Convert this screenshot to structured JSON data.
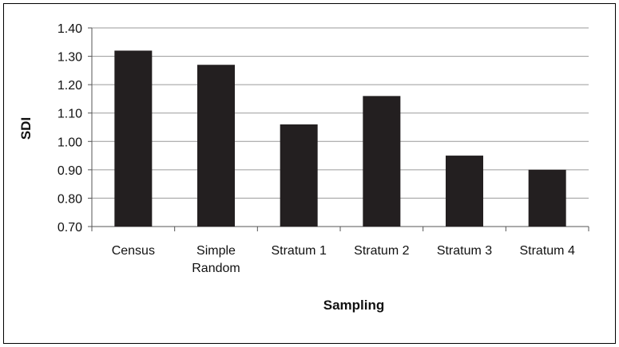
{
  "chart_data": {
    "type": "bar",
    "title": "",
    "xlabel": "Sampling",
    "ylabel": "SDI",
    "categories": [
      [
        "Census"
      ],
      [
        "Simple",
        "Random"
      ],
      [
        "Stratum 1"
      ],
      [
        "Stratum 2"
      ],
      [
        "Stratum 3"
      ],
      [
        "Stratum 4"
      ]
    ],
    "values": [
      1.32,
      1.27,
      1.06,
      1.16,
      0.95,
      0.9
    ],
    "ylim": [
      0.7,
      1.4
    ],
    "yticks": [
      "0.70",
      "0.80",
      "0.90",
      "1.00",
      "1.10",
      "1.20",
      "1.30",
      "1.40"
    ],
    "ytick_values": [
      0.7,
      0.8,
      0.9,
      1.0,
      1.1,
      1.2,
      1.3,
      1.4
    ],
    "grid": true,
    "legend": "none",
    "colors": {
      "bar": "#231f20",
      "grid": "#9a9a9a",
      "axis": "#555555"
    }
  }
}
